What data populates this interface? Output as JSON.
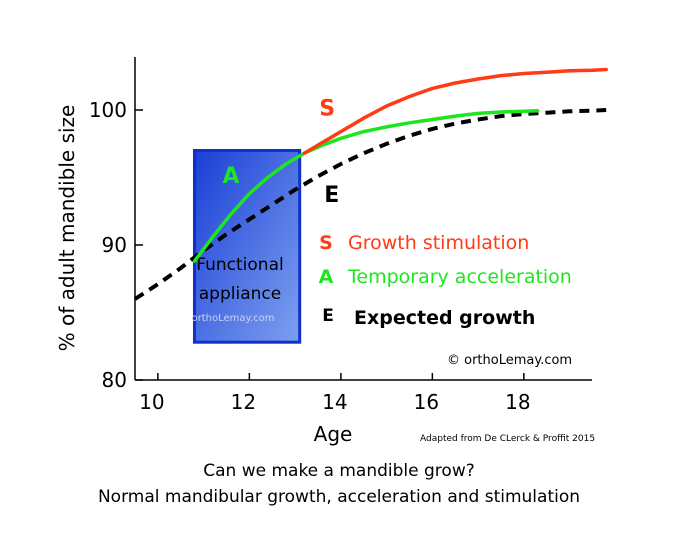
{
  "chart_data": {
    "type": "line",
    "ylabel": "% of adult mandible size",
    "xlabel": "Age",
    "xlim": [
      9.5,
      19.8
    ],
    "ylim": [
      80,
      103
    ],
    "xticks": [
      10,
      12,
      14,
      16,
      18
    ],
    "yticks": [
      80,
      90,
      100
    ],
    "series": [
      {
        "name": "Expected growth",
        "letter": "E",
        "color": "#000000",
        "style": "dashed",
        "x": [
          9.5,
          10,
          10.5,
          11,
          11.5,
          12,
          12.5,
          13,
          13.5,
          14,
          14.5,
          15,
          15.5,
          16,
          16.5,
          17,
          17.5,
          18,
          18.5,
          19,
          19.5,
          19.8
        ],
        "y": [
          86.0,
          87.1,
          88.3,
          89.6,
          90.8,
          91.9,
          93.0,
          94.1,
          95.1,
          96.0,
          96.8,
          97.5,
          98.1,
          98.6,
          99.0,
          99.3,
          99.55,
          99.7,
          99.8,
          99.9,
          99.95,
          100.0
        ]
      },
      {
        "name": "Temporary acceleration",
        "letter": "A",
        "color": "#1ee61e",
        "style": "solid",
        "x": [
          10.8,
          11.2,
          11.6,
          12.0,
          12.4,
          12.8,
          13.2,
          13.6,
          14.0,
          14.5,
          15,
          15.5,
          16,
          16.5,
          17,
          17.5,
          18,
          18.3
        ],
        "y": [
          88.8,
          90.6,
          92.3,
          93.8,
          95.0,
          96.0,
          96.8,
          97.4,
          97.9,
          98.4,
          98.75,
          99.05,
          99.3,
          99.55,
          99.75,
          99.85,
          99.9,
          99.95
        ]
      },
      {
        "name": "Growth stimulation",
        "letter": "S",
        "color": "#ff3a14",
        "style": "solid",
        "x": [
          13.2,
          13.6,
          14.0,
          14.5,
          15,
          15.5,
          16,
          16.5,
          17,
          17.5,
          18,
          18.5,
          19,
          19.5,
          19.8
        ],
        "y": [
          96.8,
          97.6,
          98.4,
          99.4,
          100.3,
          101.0,
          101.6,
          102.0,
          102.3,
          102.55,
          102.7,
          102.8,
          102.9,
          102.95,
          103.0
        ]
      }
    ],
    "appliance_box": {
      "x_start": 10.8,
      "x_end": 13.1,
      "y_low": 82.8,
      "y_high": 97.0
    },
    "curve_letters": {
      "S": {
        "x": 13.7,
        "y": 99.6
      },
      "A": {
        "x": 11.6,
        "y": 94.6
      },
      "E": {
        "x": 13.8,
        "y": 93.2
      }
    }
  },
  "box": {
    "line1": "Functional",
    "line2": "appliance",
    "watermark": "orthoLemay.com"
  },
  "legend": [
    {
      "letter": "S",
      "label": "Growth stimulation",
      "color": "#ff3a14"
    },
    {
      "letter": "A",
      "label": "Temporary acceleration",
      "color": "#1ee61e"
    },
    {
      "letter": "E",
      "label": "Expected growth",
      "color": "#000000"
    }
  ],
  "copyright": "© orthoLemay.com",
  "source": "Adapted from De CLerck & Proffit  2015",
  "caption": {
    "line1": "Can we make a mandible grow?",
    "line2": "Normal mandibular growth, acceleration and stimulation"
  },
  "colors": {
    "box_dark": "#1a3fd6",
    "box_light": "#7ea0f0",
    "box_border": "#1030c8"
  }
}
